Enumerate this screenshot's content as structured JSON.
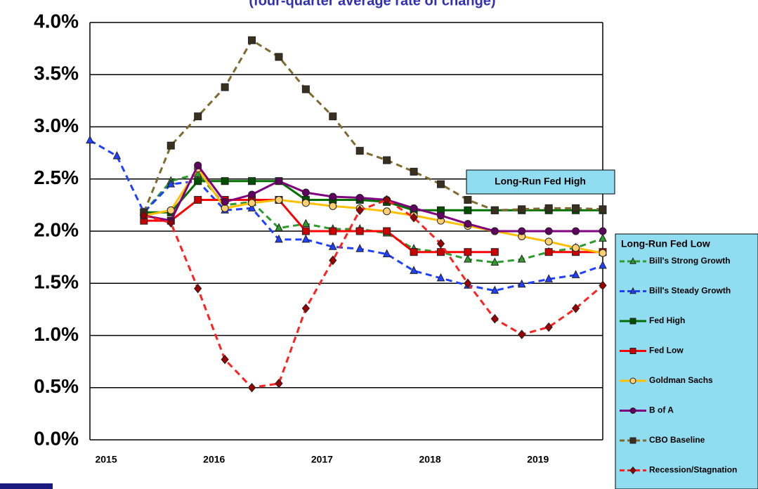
{
  "chart_data": {
    "type": "line",
    "subtitle": "(four-quarter average rate of change)",
    "categories": [
      "2015",
      null,
      null,
      null,
      "2016",
      null,
      null,
      null,
      "2017",
      null,
      null,
      null,
      "2018",
      null,
      null,
      null,
      "2019",
      null,
      null,
      null
    ],
    "ylim": [
      0,
      4
    ],
    "yticks": [
      {
        "value": 0,
        "label": "0.0%"
      },
      {
        "value": 0.5,
        "label": "0.5%"
      },
      {
        "value": 1,
        "label": "1.0%"
      },
      {
        "value": 1.5,
        "label": "1.5%"
      },
      {
        "value": 2,
        "label": "2.0%"
      },
      {
        "value": 2.5,
        "label": "2.5%"
      },
      {
        "value": 3,
        "label": "3.0%"
      },
      {
        "value": 3.5,
        "label": "3.5%"
      },
      {
        "value": 4,
        "label": "4.0%"
      }
    ],
    "grid": true,
    "annotations": [
      "Long-Run Fed High",
      "Long-Run Fed Low"
    ],
    "series": [
      {
        "name": "Bill's Strong Growth",
        "color": "#2e9b2e",
        "dash": true,
        "marker": "triangle",
        "marker_color": "#2e9b2e",
        "values": [
          null,
          null,
          2.18,
          2.48,
          2.55,
          2.25,
          2.28,
          2.03,
          2.07,
          2.02,
          2.02,
          1.98,
          1.83,
          1.8,
          1.73,
          1.7,
          1.73,
          1.8,
          1.84,
          1.93
        ]
      },
      {
        "name": "Bill's Steady Growth",
        "color": "#2040ff",
        "dash": true,
        "marker": "triangle",
        "marker_color": "#2040ff",
        "values": [
          2.87,
          2.72,
          2.18,
          2.45,
          2.48,
          2.2,
          2.22,
          1.92,
          1.92,
          1.85,
          1.83,
          1.78,
          1.62,
          1.55,
          1.48,
          1.43,
          1.49,
          1.54,
          1.58,
          1.67
        ]
      },
      {
        "name": "Fed High",
        "color": "#007000",
        "dash": false,
        "marker": "square",
        "marker_color": "#005000",
        "values": [
          null,
          null,
          2.18,
          2.18,
          2.48,
          2.48,
          2.48,
          2.48,
          2.3,
          2.3,
          2.3,
          2.28,
          2.2,
          2.2,
          2.2,
          2.2,
          2.2,
          2.2,
          2.2,
          2.2
        ]
      },
      {
        "name": "Fed Low",
        "color": "#ff0000",
        "dash": false,
        "marker": "square",
        "marker_color": "#cc0000",
        "values": [
          null,
          null,
          2.1,
          2.1,
          2.3,
          2.3,
          2.3,
          2.3,
          2.0,
          2.0,
          2.0,
          2.0,
          1.8,
          1.8,
          1.8,
          1.8,
          null,
          1.8,
          1.8,
          1.8
        ]
      },
      {
        "name": "Goldman Sachs",
        "color": "#ffc000",
        "dash": false,
        "marker": "circle",
        "marker_color": "#ffd070",
        "values": [
          null,
          null,
          2.15,
          2.2,
          2.6,
          2.22,
          2.27,
          2.3,
          2.27,
          2.24,
          2.22,
          2.19,
          2.15,
          2.1,
          2.05,
          2.0,
          1.95,
          1.9,
          1.84,
          1.79
        ]
      },
      {
        "name": "B of A",
        "color": "#800080",
        "dash": false,
        "marker": "circle",
        "marker_color": "#600060",
        "values": [
          null,
          null,
          2.15,
          2.1,
          2.63,
          2.28,
          2.35,
          2.48,
          2.37,
          2.33,
          2.32,
          2.3,
          2.22,
          2.15,
          2.07,
          2.0,
          2.0,
          2.0,
          2.0,
          2.0
        ]
      },
      {
        "name": "CBO Baseline",
        "color": "#806a30",
        "dash": true,
        "marker": "square",
        "marker_color": "#3a3020",
        "values": [
          null,
          null,
          2.18,
          2.82,
          3.1,
          3.38,
          3.83,
          3.67,
          3.36,
          3.1,
          2.77,
          2.68,
          2.57,
          2.45,
          2.3,
          2.2,
          2.21,
          2.22,
          2.22,
          2.21
        ]
      },
      {
        "name": "Recession/Stagnation",
        "color": "#ff2020",
        "dash": true,
        "marker": "diamond",
        "marker_color": "#990000",
        "values": [
          null,
          null,
          2.15,
          2.08,
          1.45,
          0.77,
          0.5,
          0.54,
          1.26,
          1.72,
          2.2,
          2.3,
          2.13,
          1.88,
          1.5,
          1.16,
          1.01,
          1.08,
          1.26,
          1.48
        ]
      }
    ]
  }
}
